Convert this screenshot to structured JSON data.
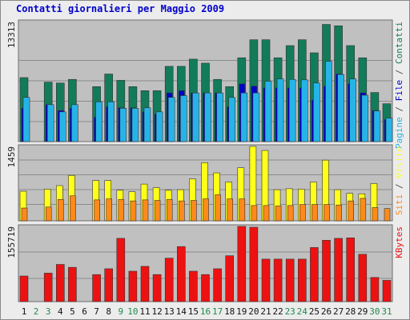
{
  "title": "Contatti giornalieri per Maggio 2009",
  "colors": {
    "background": "#ececec",
    "panel": "#c0c0c0",
    "grid": "#8c8c8c",
    "contatti": "#127b5a",
    "file": "#0000cc",
    "pagine": "#26b4e8",
    "visite": "#ffff1a",
    "siti": "#ff8a1a",
    "kbytes": "#ee1111",
    "weekday_text": "#111111",
    "weekend_text": "#1f8a4c",
    "title": "#0000cc"
  },
  "chart_data": [
    {
      "type": "bar",
      "panel": "contatti-file-pagine",
      "y_max_label": "13313",
      "ylim": [
        0,
        13313
      ],
      "grid": true,
      "right_label": [
        {
          "text": "Pagine",
          "color": "#26b4e8"
        },
        {
          "text": " / ",
          "color": "#555555"
        },
        {
          "text": "File",
          "color": "#0000cc"
        },
        {
          "text": " / ",
          "color": "#555555"
        },
        {
          "text": "Contatti",
          "color": "#127b5a"
        }
      ],
      "categories": [
        "1",
        "2",
        "3",
        "4",
        "5",
        "6",
        "7",
        "8",
        "9",
        "10",
        "11",
        "12",
        "13",
        "14",
        "15",
        "16",
        "17",
        "18",
        "19",
        "20",
        "21",
        "22",
        "23",
        "24",
        "25",
        "26",
        "27",
        "28",
        "29",
        "30",
        "31"
      ],
      "series": [
        {
          "name": "Contatti",
          "color": "#127b5a",
          "values": [
            7100,
            0,
            6600,
            6500,
            6900,
            0,
            6100,
            7500,
            6800,
            6100,
            5650,
            5650,
            8350,
            8350,
            9150,
            8700,
            6900,
            6100,
            9300,
            11300,
            11300,
            9300,
            10650,
            11300,
            9850,
            13000,
            12850,
            10650,
            9300,
            5450,
            4200
          ]
        },
        {
          "name": "File",
          "color": "#0000cc",
          "values": [
            3700,
            0,
            4100,
            3450,
            3700,
            0,
            2700,
            3850,
            3750,
            3750,
            3300,
            3050,
            5400,
            5650,
            5400,
            5400,
            5400,
            3850,
            6400,
            6150,
            5950,
            5950,
            5950,
            5950,
            4600,
            6150,
            7500,
            6400,
            5400,
            3450,
            2450
          ]
        },
        {
          "name": "Pagine",
          "color": "#26b4e8",
          "values": [
            4900,
            0,
            4100,
            3300,
            4100,
            0,
            4400,
            4400,
            3700,
            3700,
            3750,
            3300,
            4900,
            5100,
            5400,
            5400,
            5400,
            4900,
            5400,
            5400,
            6700,
            6950,
            6900,
            6850,
            6500,
            8900,
            7450,
            6950,
            5150,
            3400,
            2600
          ]
        }
      ]
    },
    {
      "type": "bar",
      "panel": "siti-visite",
      "y_max_label": "1459",
      "ylim": [
        0,
        1459
      ],
      "grid": true,
      "right_label": [
        {
          "text": "Siti",
          "color": "#ff8a1a"
        },
        {
          "text": " / ",
          "color": "#555555"
        },
        {
          "text": "Visite",
          "color": "#ffff1a"
        }
      ],
      "categories": [
        "1",
        "2",
        "3",
        "4",
        "5",
        "6",
        "7",
        "8",
        "9",
        "10",
        "11",
        "12",
        "13",
        "14",
        "15",
        "16",
        "17",
        "18",
        "19",
        "20",
        "21",
        "22",
        "23",
        "24",
        "25",
        "26",
        "27",
        "28",
        "29",
        "30",
        "31"
      ],
      "series": [
        {
          "name": "Visite",
          "color": "#ffff1a",
          "values": [
            580,
            0,
            620,
            690,
            890,
            0,
            790,
            790,
            600,
            570,
            720,
            650,
            600,
            610,
            820,
            1140,
            940,
            760,
            1040,
            1480,
            1380,
            610,
            630,
            620,
            760,
            1190,
            610,
            540,
            530,
            730,
            0
          ]
        },
        {
          "name": "Siti",
          "color": "#ff8a1a",
          "values": [
            250,
            0,
            270,
            420,
            490,
            0,
            410,
            430,
            420,
            390,
            410,
            400,
            420,
            390,
            400,
            430,
            510,
            430,
            430,
            300,
            300,
            290,
            300,
            320,
            320,
            320,
            310,
            390,
            440,
            260,
            240
          ]
        }
      ]
    },
    {
      "type": "bar",
      "panel": "kbytes",
      "y_max_label": "155719",
      "ylim": [
        0,
        155719
      ],
      "grid": true,
      "right_label": [
        {
          "text": "KBytes",
          "color": "#ee1111"
        }
      ],
      "categories": [
        "1",
        "2",
        "3",
        "4",
        "5",
        "6",
        "7",
        "8",
        "9",
        "10",
        "11",
        "12",
        "13",
        "14",
        "15",
        "16",
        "17",
        "18",
        "19",
        "20",
        "21",
        "22",
        "23",
        "24",
        "25",
        "26",
        "27",
        "28",
        "29",
        "30",
        "31"
      ],
      "series": [
        {
          "name": "KBytes",
          "color": "#ee1111",
          "values": [
            53000,
            0,
            59000,
            77000,
            71000,
            0,
            56000,
            68000,
            131000,
            63000,
            73000,
            56000,
            90000,
            114000,
            63000,
            56000,
            68000,
            95000,
            159000,
            154000,
            88000,
            88000,
            88000,
            88000,
            112000,
            127000,
            131000,
            132000,
            98000,
            50000,
            44000
          ]
        }
      ]
    }
  ],
  "days": [
    {
      "label": "1",
      "weekend": false
    },
    {
      "label": "2",
      "weekend": true
    },
    {
      "label": "3",
      "weekend": true
    },
    {
      "label": "4",
      "weekend": false
    },
    {
      "label": "5",
      "weekend": false
    },
    {
      "label": "6",
      "weekend": false
    },
    {
      "label": "7",
      "weekend": false
    },
    {
      "label": "8",
      "weekend": false
    },
    {
      "label": "9",
      "weekend": true
    },
    {
      "label": "10",
      "weekend": true
    },
    {
      "label": "11",
      "weekend": false
    },
    {
      "label": "12",
      "weekend": false
    },
    {
      "label": "13",
      "weekend": false
    },
    {
      "label": "14",
      "weekend": false
    },
    {
      "label": "15",
      "weekend": false
    },
    {
      "label": "16",
      "weekend": true
    },
    {
      "label": "17",
      "weekend": true
    },
    {
      "label": "18",
      "weekend": false
    },
    {
      "label": "19",
      "weekend": false
    },
    {
      "label": "20",
      "weekend": false
    },
    {
      "label": "21",
      "weekend": false
    },
    {
      "label": "22",
      "weekend": false
    },
    {
      "label": "23",
      "weekend": true
    },
    {
      "label": "24",
      "weekend": true
    },
    {
      "label": "25",
      "weekend": false
    },
    {
      "label": "26",
      "weekend": false
    },
    {
      "label": "27",
      "weekend": false
    },
    {
      "label": "28",
      "weekend": false
    },
    {
      "label": "29",
      "weekend": false
    },
    {
      "label": "30",
      "weekend": true
    },
    {
      "label": "31",
      "weekend": true
    }
  ]
}
